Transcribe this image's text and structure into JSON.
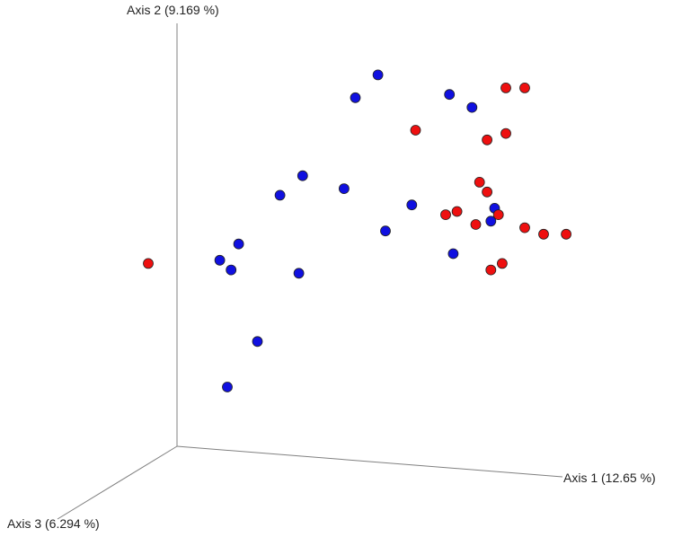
{
  "chart_data": {
    "type": "scatter",
    "projection": "3d",
    "axes": {
      "x": "Axis 1 (12.65 %)",
      "y": "Axis 2 (9.169 %)",
      "z": "Axis 3 (6.294 %)"
    },
    "grid": false,
    "legend": "none",
    "series": [
      {
        "color": "#1010e0",
        "points": [
          [
            0.61,
            0.88,
            0.0
          ],
          [
            0.55,
            0.81,
            0.0
          ],
          [
            0.8,
            0.82,
            0.0
          ],
          [
            0.86,
            0.78,
            0.0
          ],
          [
            0.41,
            0.57,
            0.0
          ],
          [
            0.52,
            0.53,
            0.0
          ],
          [
            0.63,
            0.4,
            0.0
          ],
          [
            0.35,
            0.51,
            0.0
          ],
          [
            0.4,
            0.27,
            0.0
          ],
          [
            0.24,
            0.36,
            0.0
          ],
          [
            0.19,
            0.31,
            0.0
          ],
          [
            0.22,
            0.28,
            0.0
          ],
          [
            0.7,
            0.48,
            0.0
          ],
          [
            0.92,
            0.47,
            0.0
          ],
          [
            0.91,
            0.43,
            0.0
          ],
          [
            0.81,
            0.33,
            0.0
          ],
          [
            0.29,
            0.06,
            0.0
          ],
          [
            0.21,
            -0.08,
            0.0
          ]
        ]
      },
      {
        "color": "#ee1010",
        "points": [
          [
            0.95,
            0.84,
            0.0
          ],
          [
            1.0,
            0.84,
            0.0
          ],
          [
            0.71,
            0.71,
            0.0
          ],
          [
            0.9,
            0.68,
            0.0
          ],
          [
            0.95,
            0.7,
            0.0
          ],
          [
            0.88,
            0.55,
            0.0
          ],
          [
            0.9,
            0.52,
            0.0
          ],
          [
            0.79,
            0.45,
            0.0
          ],
          [
            0.82,
            0.46,
            0.0
          ],
          [
            0.87,
            0.42,
            0.0
          ],
          [
            0.93,
            0.45,
            0.0
          ],
          [
            1.0,
            0.41,
            0.0
          ],
          [
            1.05,
            0.39,
            0.0
          ],
          [
            1.11,
            0.39,
            0.0
          ],
          [
            0.94,
            0.3,
            0.0
          ],
          [
            0.91,
            0.28,
            0.0
          ],
          [
            0.0,
            0.3,
            0.0
          ]
        ]
      }
    ]
  }
}
